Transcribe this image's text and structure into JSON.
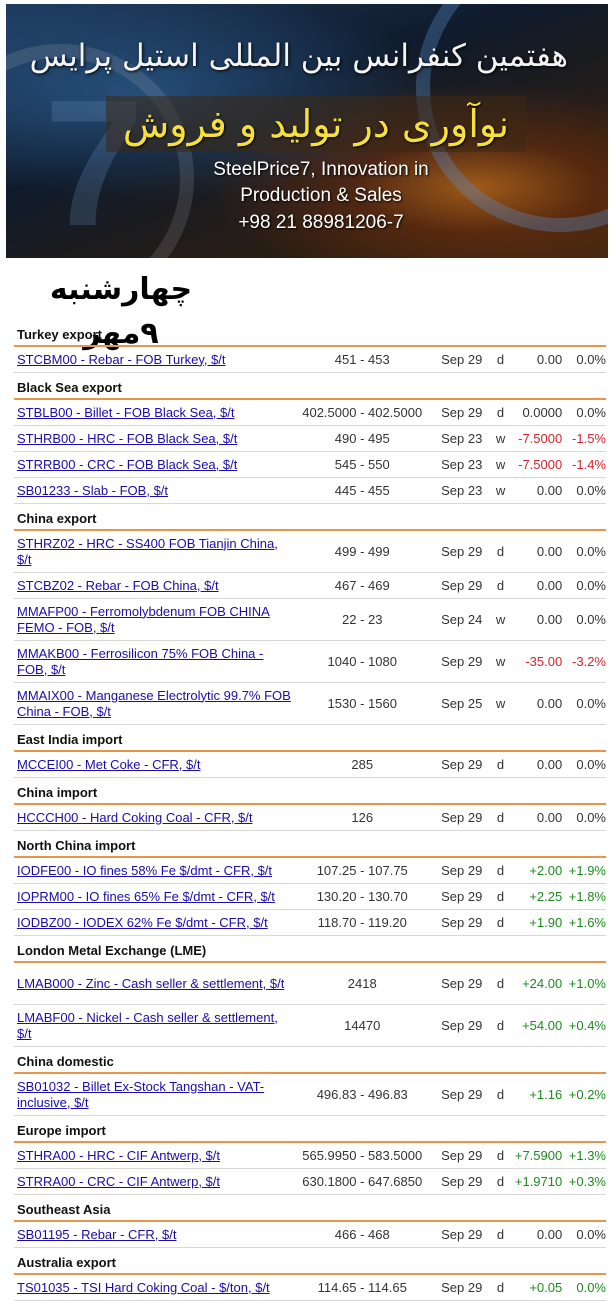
{
  "banner": {
    "persian_line1": "هفتمین کنفرانس بین المللی استیل پرایس",
    "persian_line2": "نوآوری در تولید و فروش",
    "english_line1": "SteelPrice7, Innovation in",
    "english_line2": "Production & Sales",
    "phone": "+98 21 88981206-7"
  },
  "date_label": "چهارشنبه ۹مهر",
  "colors": {
    "accent_line": "#e8944a",
    "link": "#1a0dab",
    "negative": "#d8232a",
    "positive": "#1e8a1e"
  },
  "sections": [
    {
      "title": "Turkey export",
      "rows": [
        {
          "name": "STCBM00 - Rebar - FOB Turkey, $/t",
          "price": "451 - 453",
          "date": "Sep 29",
          "freq": "d",
          "change": "0.00",
          "pct": "0.0%",
          "dir": ""
        }
      ]
    },
    {
      "title": "Black Sea export",
      "rows": [
        {
          "name": "STBLB00 - Billet - FOB Black Sea, $/t",
          "price": "402.5000 - 402.5000",
          "date": "Sep 29",
          "freq": "d",
          "change": "0.0000",
          "pct": "0.0%",
          "dir": ""
        },
        {
          "name": "STHRB00 - HRC - FOB Black Sea, $/t",
          "price": "490 - 495",
          "date": "Sep 23",
          "freq": "w",
          "change": "-7.5000",
          "pct": "-1.5%",
          "dir": "neg"
        },
        {
          "name": "STRRB00 - CRC - FOB Black Sea, $/t",
          "price": "545 - 550",
          "date": "Sep 23",
          "freq": "w",
          "change": "-7.5000",
          "pct": "-1.4%",
          "dir": "neg"
        },
        {
          "name": "SB01233 - Slab - FOB, $/t",
          "price": "445 - 455",
          "date": "Sep 23",
          "freq": "w",
          "change": "0.00",
          "pct": "0.0%",
          "dir": ""
        }
      ]
    },
    {
      "title": "China export",
      "rows": [
        {
          "name": "STHRZ02 - HRC - SS400 FOB Tianjin China, $/t",
          "price": "499 - 499",
          "date": "Sep 29",
          "freq": "d",
          "change": "0.00",
          "pct": "0.0%",
          "dir": "",
          "tall": true
        },
        {
          "name": "STCBZ02 - Rebar - FOB China, $/t",
          "price": "467 - 469",
          "date": "Sep 29",
          "freq": "d",
          "change": "0.00",
          "pct": "0.0%",
          "dir": ""
        },
        {
          "name": "MMAFP00 - Ferromolybdenum FOB CHINA FEMO - FOB, $/t",
          "price": "22 - 23",
          "date": "Sep 24",
          "freq": "w",
          "change": "0.00",
          "pct": "0.0%",
          "dir": "",
          "tall": true
        },
        {
          "name": "MMAKB00 - Ferrosilicon 75% FOB China - FOB, $/t",
          "price": "1040 - 1080",
          "date": "Sep 29",
          "freq": "w",
          "change": "-35.00",
          "pct": "-3.2%",
          "dir": "neg",
          "tall": true
        },
        {
          "name": "MMAIX00 - Manganese Electrolytic 99.7% FOB China - FOB, $/t",
          "price": "1530 - 1560",
          "date": "Sep 25",
          "freq": "w",
          "change": "0.00",
          "pct": "0.0%",
          "dir": "",
          "tall": true
        }
      ]
    },
    {
      "title": "East India import",
      "rows": [
        {
          "name": "MCCEI00 - Met Coke - CFR, $/t",
          "price": "285",
          "date": "Sep 29",
          "freq": "d",
          "change": "0.00",
          "pct": "0.0%",
          "dir": ""
        }
      ]
    },
    {
      "title": "China import",
      "rows": [
        {
          "name": "HCCCH00 - Hard Coking Coal - CFR, $/t",
          "price": "126",
          "date": "Sep 29",
          "freq": "d",
          "change": "0.00",
          "pct": "0.0%",
          "dir": ""
        }
      ]
    },
    {
      "title": "North China import",
      "rows": [
        {
          "name": "IODFE00 - IO fines 58% Fe $/dmt - CFR, $/t",
          "price": "107.25 - 107.75",
          "date": "Sep 29",
          "freq": "d",
          "change": "+2.00",
          "pct": "+1.9%",
          "dir": "pos"
        },
        {
          "name": "IOPRM00 - IO fines 65% Fe $/dmt - CFR, $/t",
          "price": "130.20 - 130.70",
          "date": "Sep 29",
          "freq": "d",
          "change": "+2.25",
          "pct": "+1.8%",
          "dir": "pos"
        },
        {
          "name": "IODBZ00 - IODEX 62% Fe $/dmt - CFR, $/t",
          "price": "118.70 - 119.20",
          "date": "Sep 29",
          "freq": "d",
          "change": "+1.90",
          "pct": "+1.6%",
          "dir": "pos"
        }
      ]
    },
    {
      "title": "London Metal Exchange (LME)",
      "rows": [
        {
          "name": "LMAB000 - Zinc - Cash seller & settlement, $/t",
          "price": "2418",
          "date": "Sep 29",
          "freq": "d",
          "change": "+24.00",
          "pct": "+1.0%",
          "dir": "pos",
          "tall": true
        },
        {
          "name": "LMABF00 - Nickel - Cash seller & settlement, $/t",
          "price": "14470",
          "date": "Sep 29",
          "freq": "d",
          "change": "+54.00",
          "pct": "+0.4%",
          "dir": "pos",
          "tall": true
        }
      ]
    },
    {
      "title": "China domestic",
      "rows": [
        {
          "name": "SB01032 - Billet Ex-Stock Tangshan - VAT-inclusive, $/t",
          "price": "496.83 - 496.83",
          "date": "Sep 29",
          "freq": "d",
          "change": "+1.16",
          "pct": "+0.2%",
          "dir": "pos",
          "tall": true
        }
      ]
    },
    {
      "title": "Europe import",
      "rows": [
        {
          "name": "STHRA00 - HRC - CIF Antwerp, $/t",
          "price": "565.9950 - 583.5000",
          "date": "Sep 29",
          "freq": "d",
          "change": "+7.5900",
          "pct": "+1.3%",
          "dir": "pos"
        },
        {
          "name": "STRRA00 - CRC - CIF Antwerp, $/t",
          "price": "630.1800 - 647.6850",
          "date": "Sep 29",
          "freq": "d",
          "change": "+1.9710",
          "pct": "+0.3%",
          "dir": "pos"
        }
      ]
    },
    {
      "title": "Southeast Asia",
      "rows": [
        {
          "name": "SB01195 - Rebar - CFR, $/t",
          "price": "466 - 468",
          "date": "Sep 29",
          "freq": "d",
          "change": "0.00",
          "pct": "0.0%",
          "dir": ""
        }
      ]
    },
    {
      "title": "Australia export",
      "rows": [
        {
          "name": "TS01035 - TSI Hard Coking Coal - $/ton, $/t",
          "price": "114.65 - 114.65",
          "date": "Sep 29",
          "freq": "d",
          "change": "+0.05",
          "pct": "0.0%",
          "dir": "pos"
        }
      ]
    }
  ]
}
